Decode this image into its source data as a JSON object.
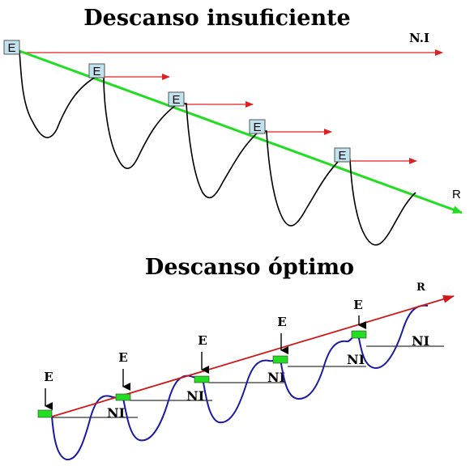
{
  "top": {
    "title": "Descanso insuficiente",
    "baseline_label": "N.I",
    "trend_label": "R",
    "effort_label": "E",
    "colors": {
      "baseline": "#e02020",
      "trend": "#22dd22",
      "curve": "#000000",
      "box": "#bfe3ef"
    }
  },
  "bottom": {
    "title": "Descanso óptimo",
    "trend_label": "R",
    "effort_label": "E",
    "ni_label": "NI",
    "colors": {
      "trend": "#d01818",
      "curve": "#1a1aa8",
      "marker": "#22dd22"
    }
  }
}
